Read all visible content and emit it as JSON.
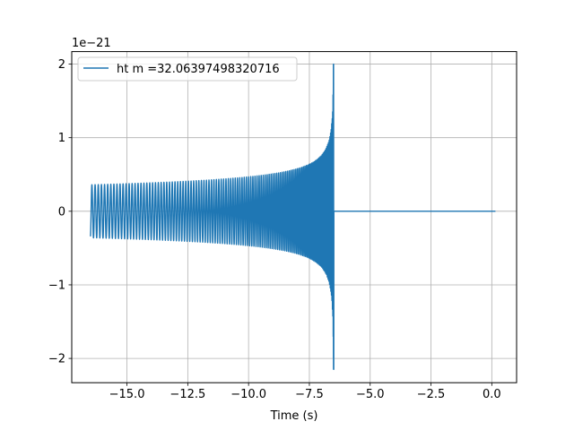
{
  "chart_data": {
    "type": "line",
    "title": "",
    "xlabel": "Time (s)",
    "ylabel": "",
    "y_offset_label": "1e−21",
    "xlim": [
      -17.27,
      1.02
    ],
    "ylim": [
      -2.33,
      2.17
    ],
    "x_ticks": [
      -15.0,
      -12.5,
      -10.0,
      -7.5,
      -5.0,
      -2.5,
      0.0
    ],
    "x_tick_labels": [
      "−15.0",
      "−12.5",
      "−10.0",
      "−7.5",
      "−5.0",
      "−2.5",
      "0.0"
    ],
    "y_ticks": [
      -2,
      -1,
      0,
      1,
      2
    ],
    "y_tick_labels": [
      "−2",
      "−1",
      "0",
      "1",
      "2"
    ],
    "grid": true,
    "legend_position": "top-left",
    "series": [
      {
        "name": "ht m =32.06397498320716",
        "color": "#1f77b4",
        "signal": {
          "kind": "chirp",
          "start_time": -16.5,
          "merger_time": -6.5,
          "end_time": 0.15,
          "start_amplitude": 0.36,
          "peak_amplitude_pos": 2.0,
          "peak_amplitude_neg": -2.15,
          "post_merger_value": 0.0
        }
      }
    ]
  }
}
